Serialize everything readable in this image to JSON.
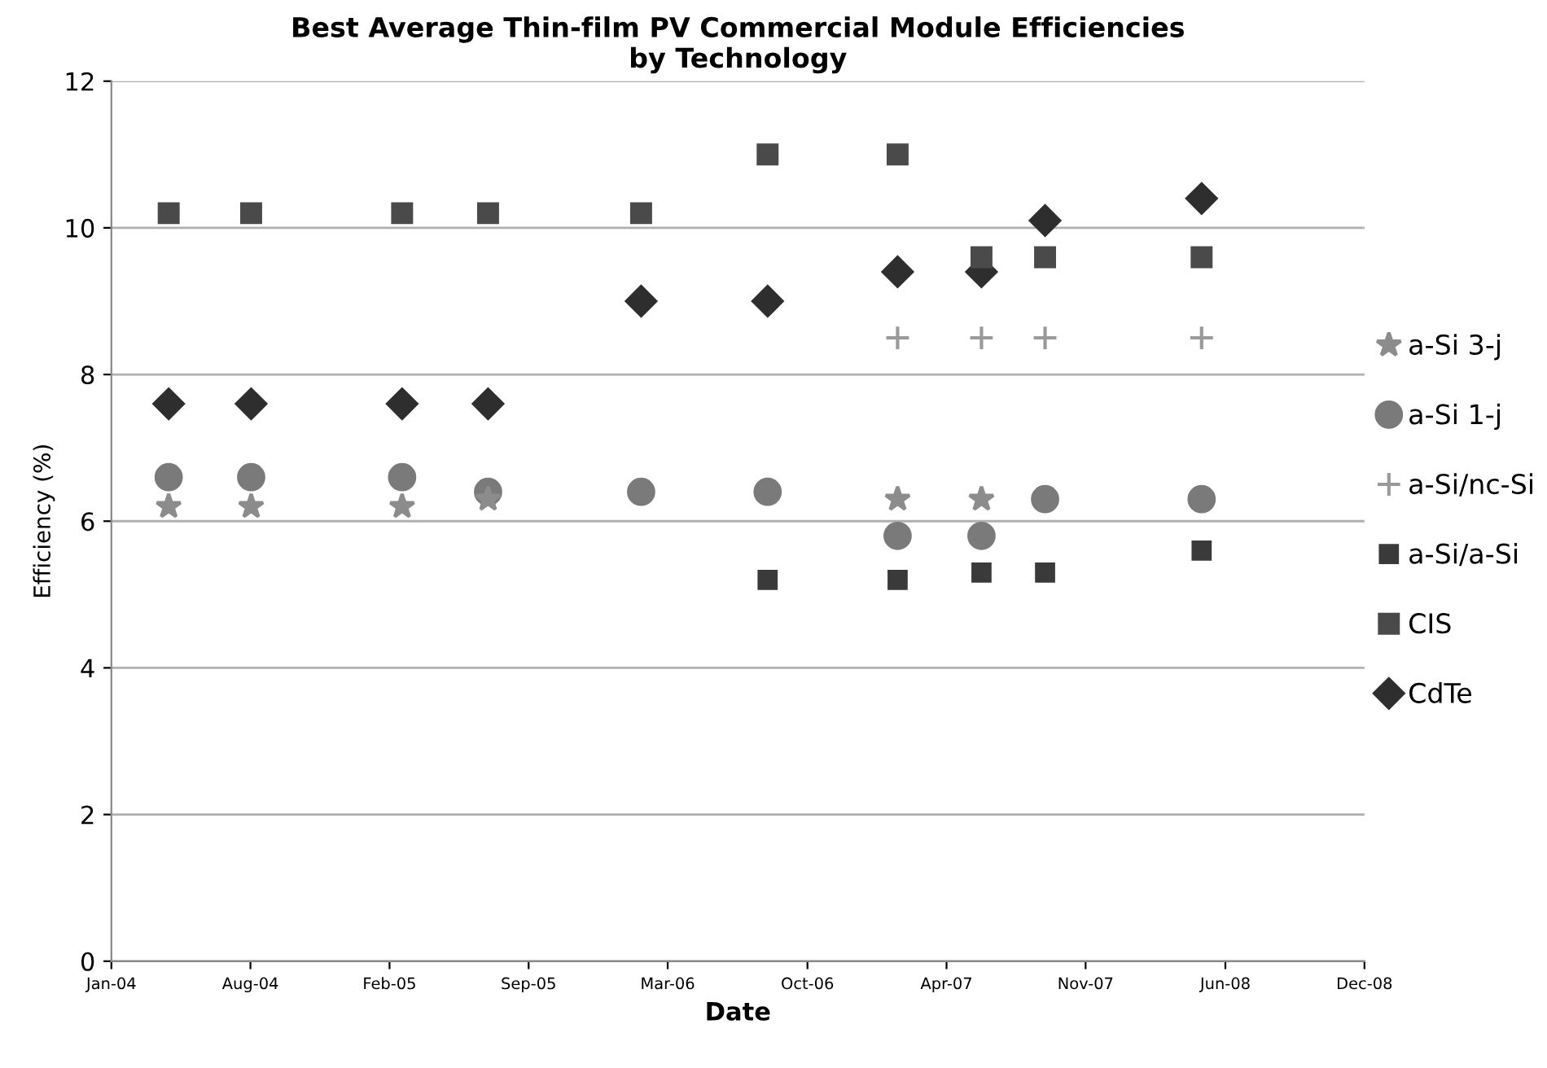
{
  "chart_data": {
    "type": "scatter",
    "title": "Best Average Thin-film PV Commercial Module Efficiencies\nby Technology",
    "xlabel": "Date",
    "ylabel": "Efficiency (%)",
    "x": [
      "2004-04-11",
      "2004-08-07",
      "2005-03-11",
      "2005-07-12",
      "2006-02-16",
      "2006-08-16",
      "2007-02-18",
      "2007-06-18",
      "2007-09-17",
      "2008-04-28"
    ],
    "series": [
      {
        "name": "a-Si 3-j",
        "color": "#8c8c8c",
        "marker": "star",
        "values": [
          6.2,
          6.2,
          6.2,
          6.3,
          null,
          null,
          6.3,
          6.3,
          null,
          null
        ]
      },
      {
        "name": "a-Si 1-j",
        "color": "#7a7a7a",
        "marker": "circle",
        "values": [
          6.6,
          6.6,
          6.6,
          6.4,
          6.4,
          6.4,
          5.8,
          5.8,
          6.3,
          6.3
        ]
      },
      {
        "name": "a-Si/nc-Si",
        "color": "#9a9a9a",
        "marker": "cross",
        "values": [
          null,
          null,
          null,
          null,
          null,
          null,
          8.5,
          8.5,
          8.5,
          8.5
        ]
      },
      {
        "name": "a-Si/a-Si",
        "color": "#3a3a3a",
        "marker": "square",
        "values": [
          null,
          null,
          null,
          null,
          null,
          5.2,
          5.2,
          5.3,
          5.3,
          5.6
        ]
      },
      {
        "name": "CIS",
        "color": "#4a4a4a",
        "marker": "square",
        "values": [
          10.2,
          10.2,
          10.2,
          10.2,
          10.2,
          11.0,
          11.0,
          9.6,
          9.6,
          9.6
        ]
      },
      {
        "name": "CdTe",
        "color": "#2e2e2e",
        "marker": "diamond",
        "values": [
          7.6,
          7.6,
          7.6,
          7.6,
          9.0,
          9.0,
          9.4,
          9.4,
          10.1,
          10.4
        ]
      }
    ],
    "xlim": [
      "2004-01-20",
      "2008-12-17"
    ],
    "xticks": [
      {
        "value": "2004-01-20",
        "label": "Jan-04"
      },
      {
        "value": "2004-08-06",
        "label": "Aug-04"
      },
      {
        "value": "2005-02-21",
        "label": "Feb-05"
      },
      {
        "value": "2005-09-08",
        "label": "Sep-05"
      },
      {
        "value": "2006-03-26",
        "label": "Mar-06"
      },
      {
        "value": "2006-10-12",
        "label": "Oct-06"
      },
      {
        "value": "2007-04-29",
        "label": "Apr-07"
      },
      {
        "value": "2007-11-14",
        "label": "Nov-07"
      },
      {
        "value": "2008-06-01",
        "label": "Jun-08"
      },
      {
        "value": "2008-12-17",
        "label": "Dec-08"
      }
    ],
    "ylim": [
      0,
      12
    ],
    "yticks": [
      0,
      2,
      4,
      6,
      8,
      10,
      12
    ],
    "grid": "y",
    "legend": "right"
  }
}
